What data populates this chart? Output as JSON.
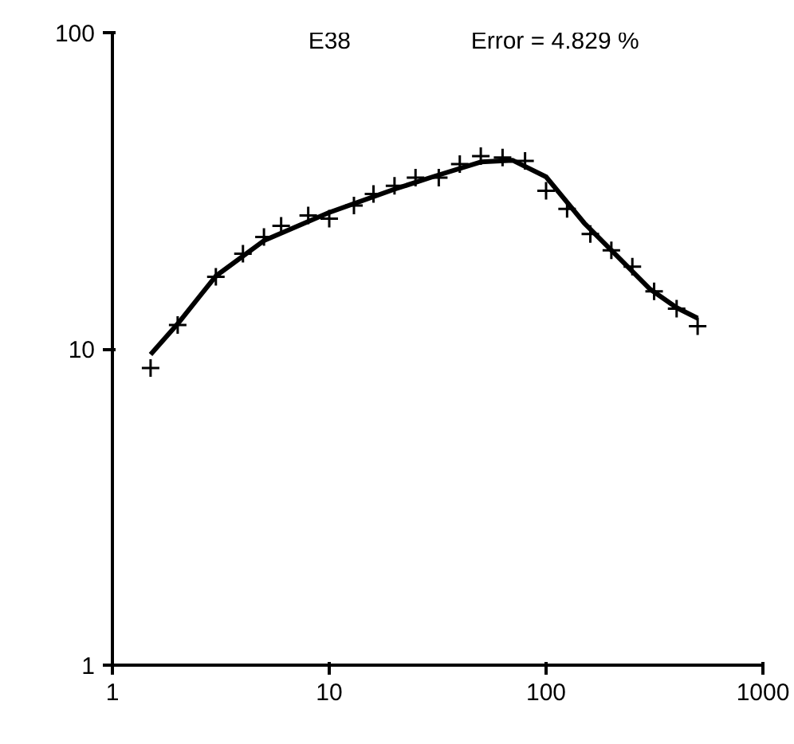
{
  "chart_data": {
    "type": "scatter",
    "log": "xy",
    "marker": "cross",
    "grid": false,
    "annotations": [
      "E38",
      "Error = 4.829 %"
    ],
    "xlim": [
      1,
      1000
    ],
    "ylim": [
      1,
      100
    ],
    "xticks": [
      1,
      10,
      100,
      1000
    ],
    "yticks": [
      1,
      10,
      100
    ],
    "series": [
      {
        "color": "#000000",
        "x": [
          1.5,
          2,
          3,
          4,
          5,
          6,
          8,
          10,
          13,
          16,
          20,
          25,
          32,
          40,
          50,
          63,
          80,
          100,
          125,
          160,
          200,
          250,
          315,
          400,
          500
        ],
        "values": [
          8.7,
          11.9,
          16.9,
          20.0,
          22.6,
          24.5,
          26.4,
          25.8,
          28.4,
          30.9,
          32.8,
          34.8,
          34.8,
          38.4,
          40.7,
          40.3,
          39.3,
          31.6,
          27.7,
          23.1,
          20.5,
          18.2,
          15.2,
          13.4,
          11.8
        ]
      },
      {
        "type": "line",
        "color": "#000000",
        "line_style": "solid",
        "marker": "none",
        "x": [
          1.5,
          2,
          3,
          5,
          10,
          20,
          30,
          50,
          70,
          100,
          150,
          200,
          300,
          400,
          500
        ],
        "values": [
          9.6,
          12,
          17,
          22,
          27,
          32,
          35,
          39,
          39.5,
          35,
          25,
          20.5,
          15.5,
          13.5,
          12.5
        ]
      }
    ]
  }
}
